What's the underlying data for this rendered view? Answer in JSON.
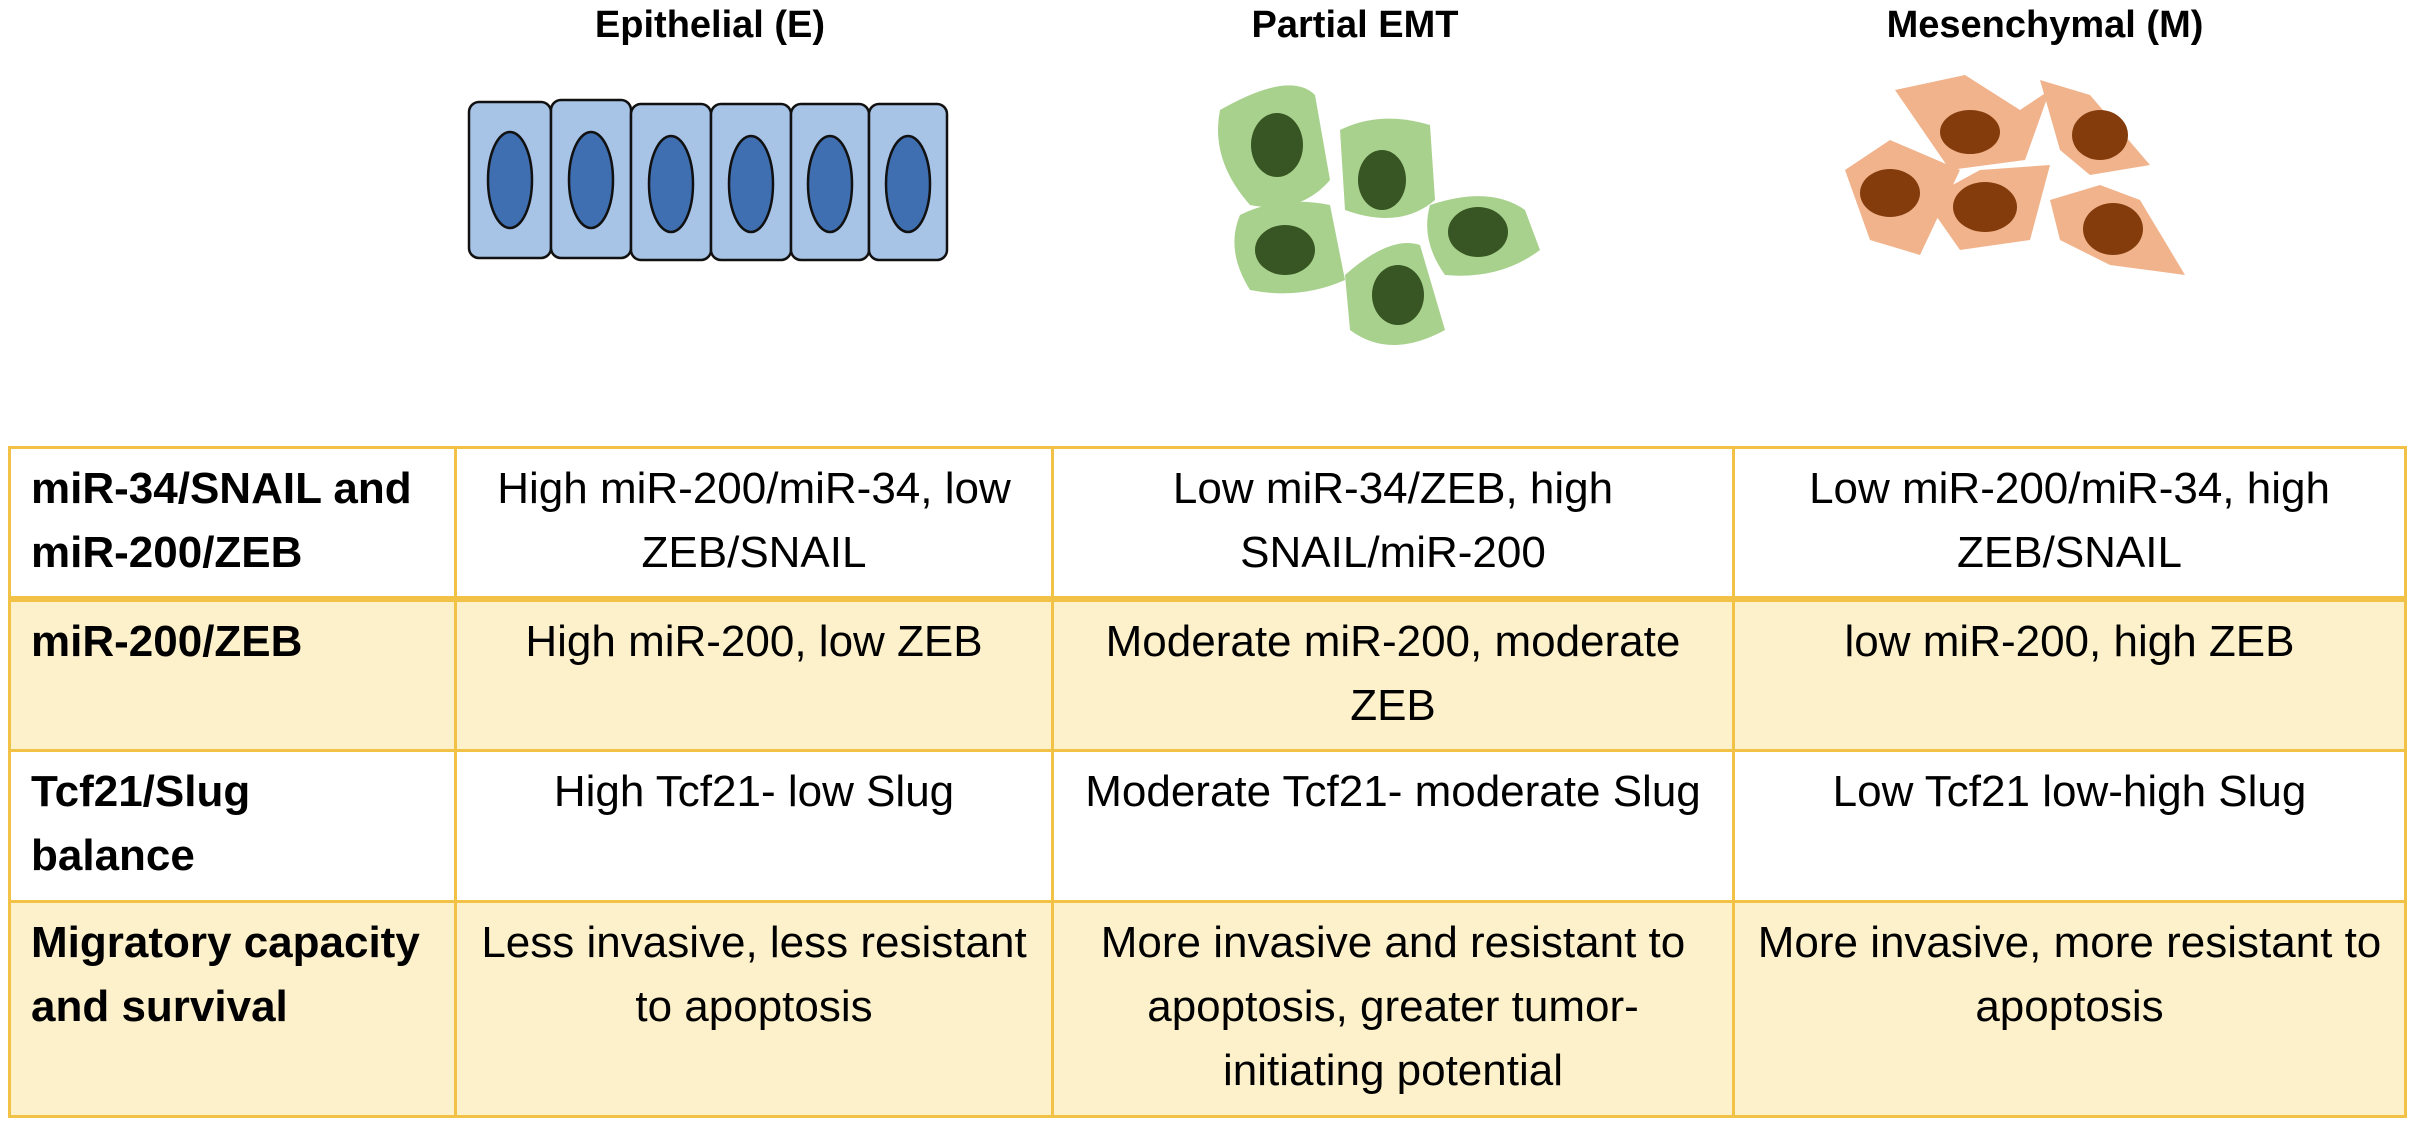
{
  "headers": [
    "Epithelial (E)",
    "Partial EMT",
    "Mesenchymal (M)"
  ],
  "table": {
    "rows": [
      [
        "miR-34/SNAIL and miR-200/ZEB",
        "High miR-200/miR-34, low ZEB/SNAIL",
        "Low miR-34/ZEB, high SNAIL/miR-200",
        "Low miR-200/miR-34, high ZEB/SNAIL"
      ],
      [
        "miR-200/ZEB",
        "High miR-200, low ZEB",
        "Moderate miR-200, moderate ZEB",
        "low miR-200, high ZEB"
      ],
      [
        "Tcf21/Slug balance",
        "High Tcf21- low Slug",
        "Moderate Tcf21- moderate Slug",
        "Low Tcf21 low-high Slug"
      ],
      [
        "Migratory capacity and survival",
        "Less invasive, less resistant to apoptosis",
        "More invasive and resistant to apoptosis, greater tumor-initiating potential",
        "More invasive, more resistant to apoptosis"
      ]
    ]
  }
}
